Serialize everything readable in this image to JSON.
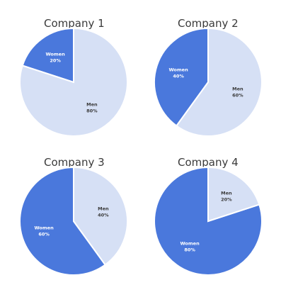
{
  "colors": {
    "women": "#4a78dc",
    "men": "#d6e0f5",
    "text": "#3a3a3a",
    "men_label": "#3a3a3a",
    "women_label": "#ffffff"
  },
  "chart_data": [
    {
      "type": "pie",
      "title": "Company 1",
      "slices": [
        {
          "name": "Women",
          "pct_label": "20%",
          "value": 20
        },
        {
          "name": "Men",
          "pct_label": "80%",
          "value": 80
        }
      ]
    },
    {
      "type": "pie",
      "title": "Company 2",
      "slices": [
        {
          "name": "Women",
          "pct_label": "40%",
          "value": 40
        },
        {
          "name": "Men",
          "pct_label": "60%",
          "value": 60
        }
      ]
    },
    {
      "type": "pie",
      "title": "Company 3",
      "slices": [
        {
          "name": "Women",
          "pct_label": "60%",
          "value": 60
        },
        {
          "name": "Men",
          "pct_label": "40%",
          "value": 40
        }
      ]
    },
    {
      "type": "pie",
      "title": "Company 4",
      "slices": [
        {
          "name": "Women",
          "pct_label": "80%",
          "value": 80
        },
        {
          "name": "Men",
          "pct_label": "20%",
          "value": 20
        }
      ]
    }
  ]
}
